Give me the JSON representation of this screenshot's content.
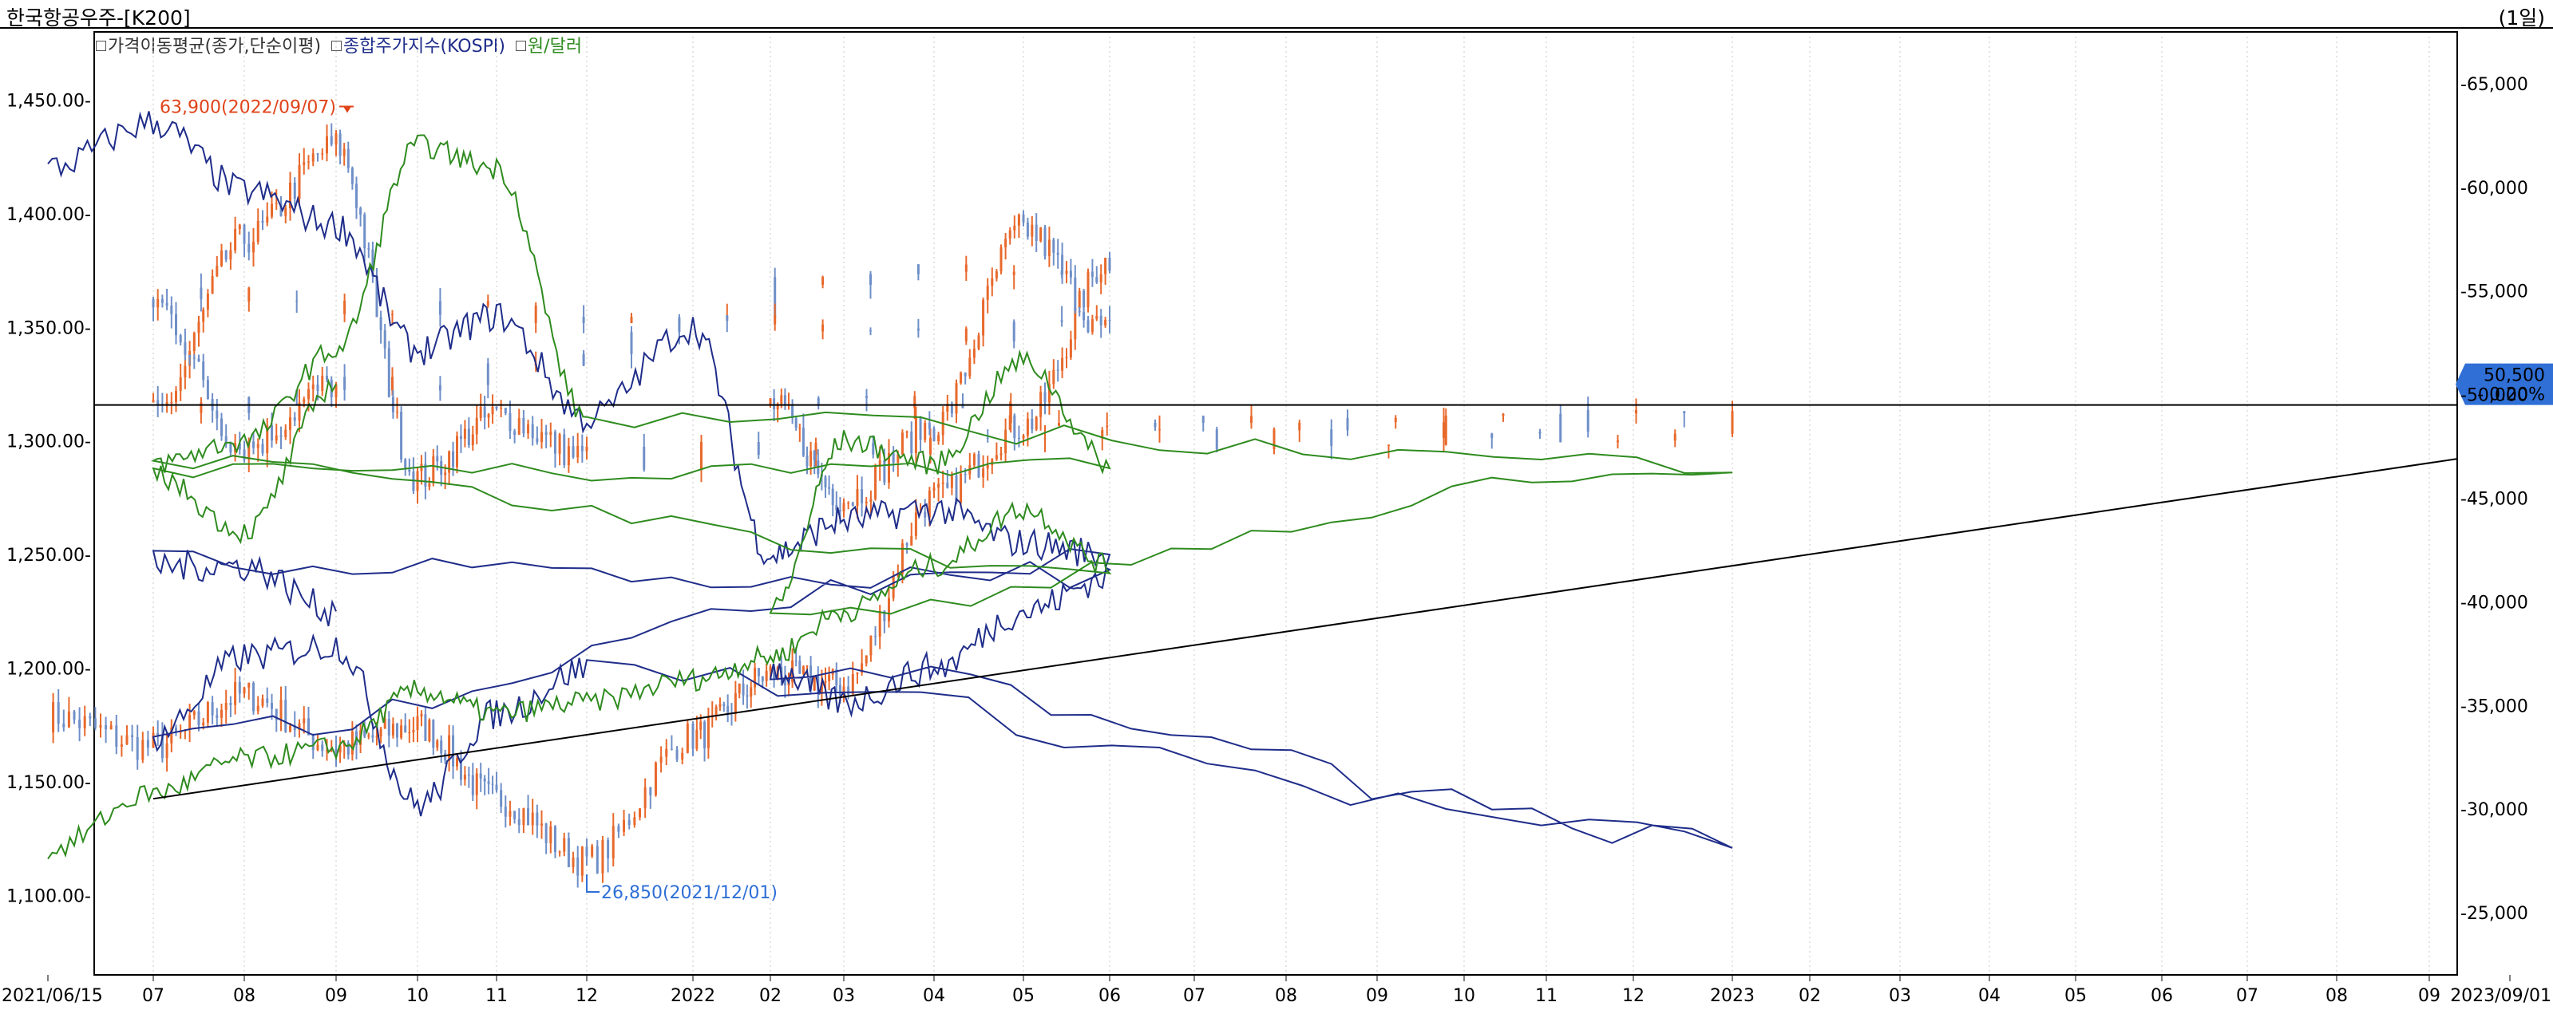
{
  "header": {
    "title": "한국항공우주-[K200]",
    "period": "(1일)"
  },
  "legend": [
    {
      "label": "가격이동평균(종가,단순이평)",
      "color": "#333333"
    },
    {
      "label": "종합주가지수(KOSPI)",
      "color": "#1f2d8a"
    },
    {
      "label": "원/달러",
      "color": "#2e8b1e"
    }
  ],
  "colors": {
    "up": "#e8692c",
    "down": "#6f8fc8",
    "kospi": "#1f2d8a",
    "krw": "#2e8b1e",
    "axis": "#000000",
    "grid": "#c8c8c8",
    "price_tag_bg": "#2f6fd6"
  },
  "chart_data": {
    "type": "line",
    "x_ticks": [
      "2021/06/15",
      "07",
      "08",
      "09",
      "10",
      "11",
      "12",
      "2022",
      "02",
      "03",
      "04",
      "05",
      "06",
      "07",
      "08",
      "09",
      "10",
      "11",
      "12",
      "2023",
      "02",
      "03",
      "04",
      "05",
      "06",
      "07",
      "08",
      "09",
      "2023/09/01"
    ],
    "left_axis": {
      "ticks": [
        "1,450.00-",
        "1,400.00-",
        "1,350.00-",
        "1,300.00-",
        "1,250.00-",
        "1,200.00-",
        "1,150.00-",
        "1,100.00-"
      ],
      "values": [
        1450,
        1400,
        1350,
        1300,
        1250,
        1200,
        1150,
        1100
      ],
      "range": [
        1065,
        1480
      ]
    },
    "right_axis": {
      "ticks": [
        "-65,000",
        "-60,000",
        "-55,000",
        "-50,000",
        "-45,000",
        "-40,000",
        "-35,000",
        "-30,000",
        "-25,000"
      ],
      "values": [
        65000,
        60000,
        55000,
        50000,
        45000,
        40000,
        35000,
        30000,
        25000
      ],
      "range": [
        22000,
        67500
      ]
    },
    "series": [
      {
        "name": "한국항공우주",
        "kind": "price",
        "axis": "right",
        "points": [
          [
            "2021/06/15",
            34500
          ],
          [
            "07",
            33000
          ],
          [
            "08",
            35500
          ],
          [
            "09",
            33000
          ],
          [
            "10",
            34000
          ],
          [
            "11",
            30500
          ],
          [
            "12",
            27500
          ],
          [
            "2022",
            33500
          ],
          [
            "02",
            36500
          ],
          [
            "03",
            36000
          ],
          [
            "04",
            45000
          ],
          [
            "05",
            48500
          ],
          [
            "06",
            56500
          ],
          [
            "07",
            49000
          ],
          [
            "08",
            57500
          ],
          [
            "09",
            62000
          ],
          [
            "10",
            46000
          ],
          [
            "11",
            49000
          ],
          [
            "12",
            47000
          ],
          [
            "2023",
            48500
          ],
          [
            "02",
            49500
          ],
          [
            "03",
            45000
          ],
          [
            "04",
            48500
          ],
          [
            "05",
            58000
          ],
          [
            "06",
            53000
          ],
          [
            "07",
            54500
          ],
          [
            "08",
            47500
          ],
          [
            "09",
            50500
          ]
        ]
      },
      {
        "name": "종합주가지수(KOSPI)",
        "kind": "line",
        "axis": "left",
        "points": [
          [
            "2021/06/15",
            1420
          ],
          [
            "07",
            1440
          ],
          [
            "08",
            1410
          ],
          [
            "09",
            1395
          ],
          [
            "10",
            1340
          ],
          [
            "11",
            1355
          ],
          [
            "12",
            1310
          ],
          [
            "2022",
            1350
          ],
          [
            "02",
            1250
          ],
          [
            "03",
            1265
          ],
          [
            "04",
            1270
          ],
          [
            "05",
            1255
          ],
          [
            "06",
            1250
          ],
          [
            "07",
            1170
          ],
          [
            "08",
            1205
          ],
          [
            "09",
            1210
          ],
          [
            "10",
            1140
          ],
          [
            "11",
            1180
          ],
          [
            "12",
            1200
          ],
          [
            "2023",
            1125
          ],
          [
            "02",
            1200
          ],
          [
            "03",
            1185
          ],
          [
            "04",
            1200
          ],
          [
            "05",
            1225
          ],
          [
            "06",
            1240
          ],
          [
            "07",
            1245
          ],
          [
            "08",
            1245
          ],
          [
            "09",
            1225
          ]
        ]
      },
      {
        "name": "원/달러",
        "kind": "line",
        "axis": "left",
        "points": [
          [
            "2021/06/15",
            1120
          ],
          [
            "07",
            1145
          ],
          [
            "08",
            1160
          ],
          [
            "09",
            1165
          ],
          [
            "10",
            1190
          ],
          [
            "11",
            1180
          ],
          [
            "12",
            1185
          ],
          [
            "2022",
            1195
          ],
          [
            "02",
            1205
          ],
          [
            "03",
            1225
          ],
          [
            "04",
            1245
          ],
          [
            "05",
            1270
          ],
          [
            "06",
            1245
          ],
          [
            "07",
            1290
          ],
          [
            "08",
            1300
          ],
          [
            "09",
            1340
          ],
          [
            "10",
            1430
          ],
          [
            "11",
            1420
          ],
          [
            "12",
            1310
          ],
          [
            "2023",
            1290
          ],
          [
            "02",
            1225
          ],
          [
            "03",
            1300
          ],
          [
            "04",
            1290
          ],
          [
            "05",
            1335
          ],
          [
            "06",
            1290
          ],
          [
            "07",
            1285
          ],
          [
            "08",
            1260
          ],
          [
            "09",
            1325
          ]
        ]
      }
    ],
    "reference_lines": [
      {
        "kind": "horizontal",
        "axis": "right",
        "value": 49500
      },
      {
        "kind": "trend",
        "axis": "right",
        "from": [
          "07",
          30500
        ],
        "to": [
          "09",
          46900
        ]
      }
    ],
    "annotations": [
      {
        "text": "63,900(2022/09/07)",
        "x": "09",
        "value": 63900,
        "color": "#e0441a",
        "kind": "high"
      },
      {
        "text": "26,850(2021/12/01)",
        "x": "12",
        "value": 26850,
        "color": "#2f6fd6",
        "kind": "low"
      }
    ],
    "current_price": {
      "price": "50,500",
      "change": "- 0.20%",
      "value": 50500
    }
  }
}
